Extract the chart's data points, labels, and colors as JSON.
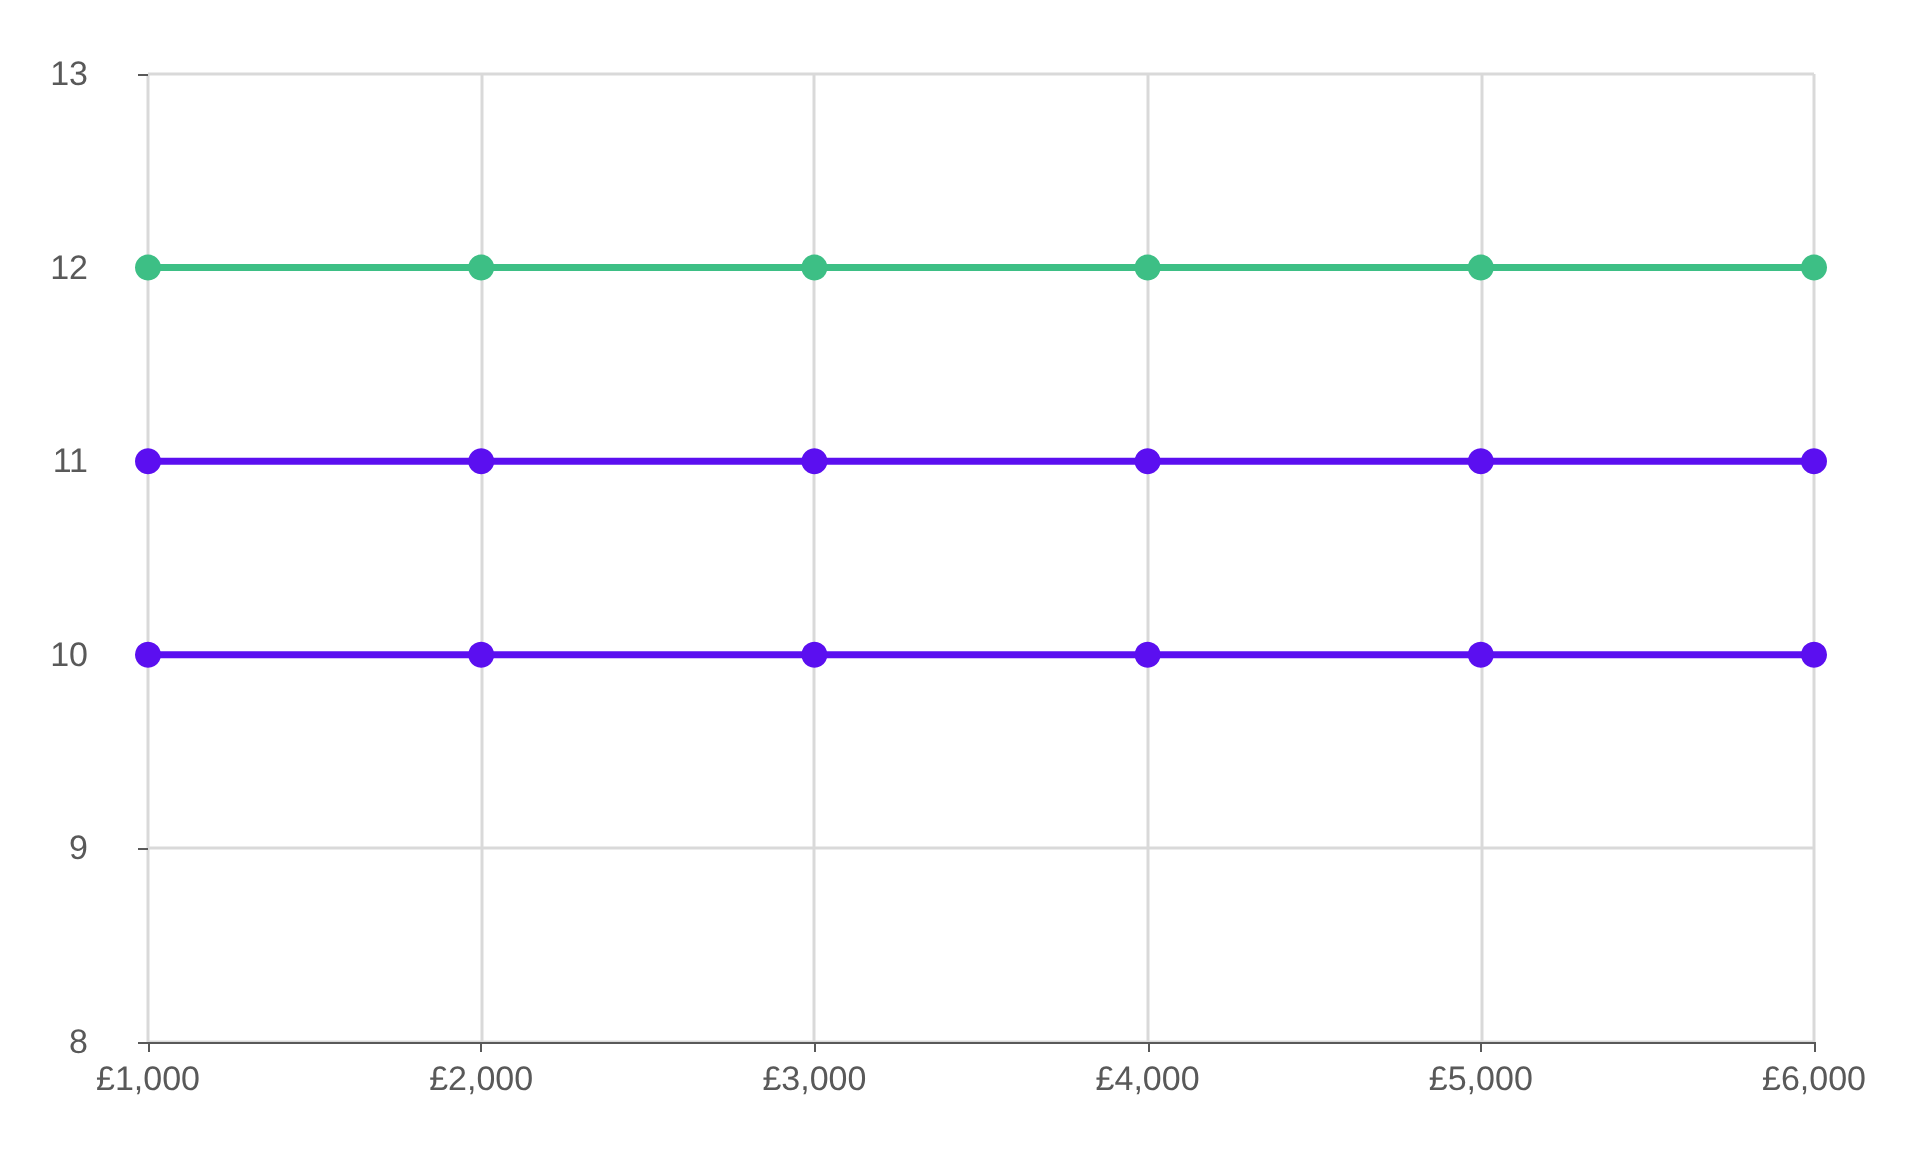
{
  "chart_data": {
    "type": "line",
    "x": [
      1000,
      2000,
      3000,
      4000,
      5000,
      6000
    ],
    "xlim": [
      1000,
      6000
    ],
    "xticks": [
      {
        "value": 1000,
        "label": "£1,000"
      },
      {
        "value": 2000,
        "label": "£2,000"
      },
      {
        "value": 3000,
        "label": "£3,000"
      },
      {
        "value": 4000,
        "label": "£4,000"
      },
      {
        "value": 5000,
        "label": "£5,000"
      },
      {
        "value": 6000,
        "label": "£6,000"
      }
    ],
    "ylim": [
      8,
      13
    ],
    "yticks": [
      8,
      9,
      10,
      11,
      12,
      13
    ],
    "series": [
      {
        "color": "#3dbf85",
        "values": [
          12,
          12,
          12,
          12,
          12,
          12
        ]
      },
      {
        "color": "#5b0ff0",
        "values": [
          11,
          11,
          11,
          11,
          11,
          11
        ]
      },
      {
        "color": "#5b0ff0",
        "values": [
          10,
          10,
          10,
          10,
          10,
          10
        ]
      }
    ],
    "grid": true,
    "marker": "circle",
    "line_style": "solid"
  }
}
